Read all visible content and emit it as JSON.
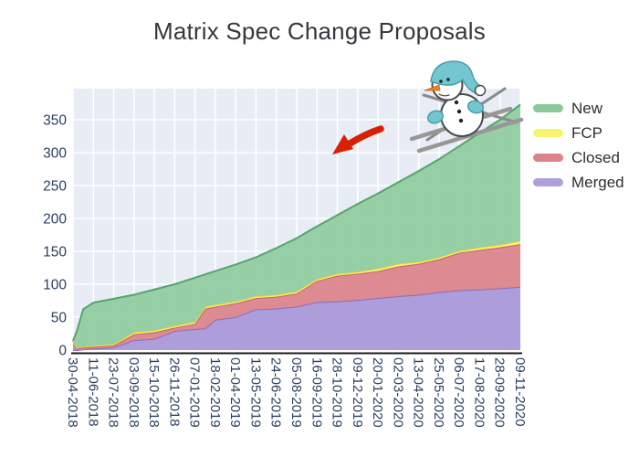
{
  "title": "Matrix Spec Change Proposals",
  "colors": {
    "page_background": "#ffffff",
    "plot_background": "#e7ecf5",
    "gridline": "#ffffff",
    "axis_line": "#1c1c1c",
    "tick_label": "#2a3f5f",
    "title_text": "#35373c",
    "legend_text": "#2f2f2f",
    "arrow_red": "#d92102",
    "snowman_teal": "#74c6cf",
    "snowman_outline": "#4a4a4a",
    "ski_gray": "#8b8b8b"
  },
  "chart_data": {
    "type": "area",
    "stacked": true,
    "title": "Matrix Spec Change Proposals",
    "xlabel": "",
    "ylabel": "",
    "grid": true,
    "legend_position": "right-top-outside",
    "ylim": [
      0,
      397
    ],
    "yticks": [
      0,
      50,
      100,
      150,
      200,
      250,
      300,
      350
    ],
    "x_tick_labels": [
      "30-04-2018",
      "11-06-2018",
      "23-07-2018",
      "03-09-2018",
      "15-10-2018",
      "26-11-2018",
      "07-01-2019",
      "18-02-2019",
      "01-04-2019",
      "13-05-2019",
      "24-06-2019",
      "05-08-2019",
      "16-09-2019",
      "28-10-2019",
      "09-12-2019",
      "20-01-2020",
      "02-03-2020",
      "13-04-2020",
      "25-05-2020",
      "06-07-2020",
      "17-08-2020",
      "28-09-2020",
      "09-11-2020"
    ],
    "x_units": "tick index (one tick = 42 days), fractional points added for sharp steps",
    "x": [
      0,
      0.2,
      0.5,
      1,
      2,
      3,
      4,
      5,
      6,
      6.5,
      7,
      8,
      9,
      10,
      11,
      12,
      13,
      14,
      15,
      16,
      17,
      18,
      19,
      20,
      21,
      22
    ],
    "series": [
      {
        "name": "Merged",
        "stack_order": 1,
        "fill": "#ab99da",
        "line": "#8672c5",
        "values": [
          0,
          0,
          1,
          2,
          4,
          15,
          17,
          29,
          32,
          33,
          46,
          50,
          62,
          63,
          66,
          73,
          74,
          76,
          79,
          82,
          84,
          88,
          91,
          92,
          94,
          96
        ]
      },
      {
        "name": "Closed",
        "stack_order": 2,
        "fill": "#dd868e",
        "line": "#cc5f6d",
        "values": [
          14,
          3,
          3,
          3,
          3,
          9,
          10,
          5,
          8,
          30,
          20,
          21,
          17,
          18,
          20,
          32,
          39,
          40,
          41,
          45,
          47,
          50,
          57,
          60,
          62,
          65
        ]
      },
      {
        "name": "FCP",
        "stack_order": 3,
        "fill": "#f7f376",
        "line": "#e3d93f",
        "values": [
          0,
          1,
          1,
          2,
          2,
          3,
          3,
          3,
          3,
          3,
          3,
          3,
          3,
          3,
          3,
          3,
          3,
          3,
          4,
          4,
          3,
          3,
          3,
          4,
          4,
          5
        ]
      },
      {
        "name": "New",
        "stack_order": 4,
        "fill": "#93cda2",
        "line": "#55a56c",
        "values": [
          0,
          26,
          57,
          65,
          69,
          57,
          62,
          63,
          67,
          49,
          51,
          56,
          59,
          71,
          81,
          80,
          89,
          103,
          114,
          124,
          138,
          149,
          159,
          174,
          190,
          207
        ]
      }
    ],
    "legend_items": [
      {
        "label": "New",
        "color": "#8bc998"
      },
      {
        "label": "FCP",
        "color": "#f7f46e"
      },
      {
        "label": "Closed",
        "color": "#de828a"
      },
      {
        "label": "Merged",
        "color": "#b19fdc"
      }
    ],
    "annotations": [
      {
        "name": "red-arrow",
        "description": "thick red arrow pointing down-left toward the green area",
        "color": "#d92102"
      },
      {
        "name": "skiing-snowman",
        "description": "cartoon snowman with teal beanie and mittens skiing down the top of the green area"
      }
    ]
  }
}
